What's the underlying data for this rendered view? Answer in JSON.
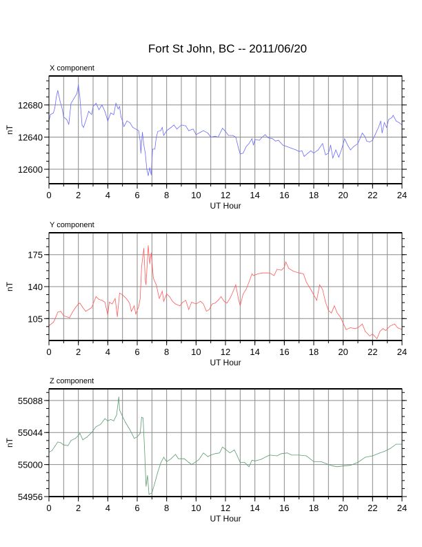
{
  "title": "Fort St John, BC -- 2011/06/20",
  "chart_data": [
    {
      "type": "line",
      "title": "X component",
      "xlabel": "UT Hour",
      "ylabel": "nT",
      "color": "#6a6aff",
      "xlim": [
        0,
        24
      ],
      "xticks": [
        0,
        2,
        4,
        6,
        8,
        10,
        12,
        14,
        16,
        18,
        20,
        22,
        24
      ],
      "ylim": [
        12582,
        12716
      ],
      "yticks": [
        12600,
        12640,
        12680
      ],
      "grid": true,
      "x": [
        0,
        0.1,
        0.3,
        0.4,
        0.5,
        0.6,
        0.75,
        0.9,
        1.0,
        1.2,
        1.35,
        1.5,
        1.7,
        1.9,
        2.0,
        2.1,
        2.25,
        2.35,
        2.5,
        2.7,
        2.9,
        3.0,
        3.2,
        3.4,
        3.6,
        3.8,
        4.0,
        4.2,
        4.4,
        4.55,
        4.7,
        4.8,
        4.9,
        5.0,
        5.1,
        5.3,
        5.5,
        5.7,
        5.9,
        6.1,
        6.2,
        6.25,
        6.35,
        6.45,
        6.55,
        6.65,
        6.75,
        6.85,
        6.95,
        7.0,
        7.05,
        7.2,
        7.3,
        7.4,
        7.6,
        7.7,
        7.8,
        8.0,
        8.3,
        8.5,
        8.7,
        9.0,
        9.3,
        9.5,
        9.8,
        10.0,
        10.3,
        10.5,
        10.8,
        11.0,
        11.3,
        11.5,
        11.8,
        12.0,
        12.2,
        12.5,
        12.7,
        12.9,
        13.0,
        13.2,
        13.4,
        13.6,
        13.8,
        13.9,
        14.0,
        14.3,
        14.5,
        14.7,
        14.9,
        15.2,
        15.4,
        15.6,
        15.9,
        16.2,
        16.5,
        16.8,
        17.0,
        17.2,
        17.35,
        17.6,
        17.8,
        18.0,
        18.3,
        18.6,
        18.8,
        19.0,
        19.15,
        19.3,
        19.5,
        19.7,
        19.9,
        20.1,
        20.3,
        20.5,
        20.7,
        21.0,
        21.3,
        21.5,
        21.6,
        21.8,
        22.0,
        22.2,
        22.4,
        22.55,
        22.65,
        22.8,
        22.95,
        23.1,
        23.3,
        23.4,
        23.6,
        23.8,
        24.0
      ],
      "y": [
        12660,
        12668,
        12670,
        12676,
        12690,
        12698,
        12685,
        12675,
        12665,
        12662,
        12656,
        12682,
        12688,
        12694,
        12705,
        12690,
        12655,
        12652,
        12660,
        12672,
        12668,
        12678,
        12682,
        12674,
        12680,
        12672,
        12660,
        12670,
        12668,
        12682,
        12675,
        12678,
        12665,
        12660,
        12653,
        12660,
        12658,
        12652,
        12650,
        12648,
        12635,
        12620,
        12646,
        12630,
        12620,
        12600,
        12592,
        12602,
        12593,
        12610,
        12625,
        12625,
        12640,
        12647,
        12648,
        12652,
        12642,
        12648,
        12652,
        12655,
        12650,
        12655,
        12654,
        12648,
        12650,
        12643,
        12646,
        12648,
        12645,
        12640,
        12641,
        12640,
        12651,
        12647,
        12642,
        12642,
        12640,
        12625,
        12619,
        12620,
        12628,
        12632,
        12638,
        12630,
        12637,
        12636,
        12640,
        12643,
        12639,
        12638,
        12635,
        12636,
        12630,
        12628,
        12626,
        12624,
        12622,
        12623,
        12616,
        12620,
        12623,
        12620,
        12624,
        12632,
        12618,
        12620,
        12630,
        12614,
        12624,
        12615,
        12625,
        12638,
        12630,
        12624,
        12628,
        12632,
        12645,
        12640,
        12635,
        12634,
        12636,
        12644,
        12652,
        12660,
        12645,
        12658,
        12652,
        12662,
        12664,
        12667,
        12660,
        12658,
        12655
      ]
    },
    {
      "type": "line",
      "title": "Y component",
      "xlabel": "UT Hour",
      "ylabel": "nT",
      "color": "#ff5a5a",
      "xlim": [
        0,
        24
      ],
      "xticks": [
        0,
        2,
        4,
        6,
        8,
        10,
        12,
        14,
        16,
        18,
        20,
        22,
        24
      ],
      "ylim": [
        81,
        199
      ],
      "yticks": [
        105,
        140,
        175
      ],
      "grid": true,
      "x": [
        0,
        0.3,
        0.4,
        0.6,
        0.8,
        1.0,
        1.2,
        1.4,
        1.6,
        1.8,
        2.0,
        2.1,
        2.3,
        2.5,
        2.7,
        2.9,
        3.0,
        3.2,
        3.4,
        3.6,
        3.8,
        4.0,
        4.1,
        4.3,
        4.5,
        4.65,
        4.8,
        5.0,
        5.2,
        5.4,
        5.5,
        5.6,
        5.8,
        5.9,
        6.1,
        6.2,
        6.3,
        6.45,
        6.55,
        6.6,
        6.75,
        6.85,
        6.95,
        7.1,
        7.3,
        7.5,
        7.7,
        7.8,
        8.0,
        8.2,
        8.4,
        8.6,
        8.9,
        9.1,
        9.3,
        9.5,
        9.7,
        10.0,
        10.3,
        10.5,
        10.7,
        10.9,
        11.1,
        11.3,
        11.5,
        11.7,
        11.9,
        12.1,
        12.3,
        12.5,
        12.7,
        12.9,
        13.0,
        13.2,
        13.4,
        13.6,
        13.8,
        13.9,
        14.2,
        14.5,
        14.8,
        15.0,
        15.3,
        15.5,
        15.8,
        16.0,
        16.1,
        16.3,
        16.6,
        17.0,
        17.3,
        17.5,
        17.8,
        18.0,
        18.2,
        18.4,
        18.6,
        18.8,
        19.0,
        19.2,
        19.4,
        19.6,
        19.8,
        20.0,
        20.2,
        20.5,
        20.8,
        21.0,
        21.3,
        21.5,
        21.8,
        22.0,
        22.3,
        22.5,
        22.7,
        22.9,
        23.2,
        23.5,
        23.7,
        24.0
      ],
      "y": [
        97,
        101,
        104,
        112,
        113,
        108,
        107,
        106,
        112,
        117,
        121,
        122,
        117,
        113,
        115,
        117,
        121,
        129,
        126,
        125,
        123,
        109,
        123,
        121,
        127,
        107,
        133,
        131,
        128,
        124,
        121,
        113,
        119,
        110,
        118,
        127,
        162,
        182,
        147,
        142,
        185,
        165,
        177,
        149,
        142,
        127,
        135,
        124,
        132,
        129,
        124,
        121,
        119,
        123,
        125,
        115,
        123,
        121,
        124,
        121,
        113,
        115,
        121,
        122,
        125,
        129,
        124,
        122,
        127,
        134,
        142,
        125,
        119,
        132,
        137,
        145,
        154,
        152,
        154,
        155,
        155,
        155,
        152,
        159,
        158,
        161,
        167,
        160,
        157,
        155,
        154,
        145,
        137,
        131,
        125,
        142,
        137,
        123,
        114,
        111,
        119,
        111,
        107,
        100,
        93,
        95,
        94,
        95,
        99,
        91,
        86,
        88,
        83,
        91,
        94,
        92,
        97,
        99,
        95,
        93
      ]
    },
    {
      "type": "line",
      "title": "Z component",
      "xlabel": "UT Hour",
      "ylabel": "nT",
      "color": "#5a9a70",
      "xlim": [
        0,
        24
      ],
      "xticks": [
        0,
        2,
        4,
        6,
        8,
        10,
        12,
        14,
        16,
        18,
        20,
        22,
        24
      ],
      "ylim": [
        54956,
        55104
      ],
      "yticks": [
        54956,
        55000,
        55044,
        55088
      ],
      "grid": true,
      "x": [
        0,
        0.2,
        0.4,
        0.6,
        0.8,
        1.0,
        1.3,
        1.5,
        1.8,
        2.0,
        2.1,
        2.3,
        2.6,
        2.9,
        3.2,
        3.5,
        3.8,
        4.0,
        4.2,
        4.4,
        4.6,
        4.75,
        4.8,
        5.0,
        5.2,
        5.5,
        5.8,
        6.0,
        6.2,
        6.3,
        6.4,
        6.5,
        6.6,
        6.7,
        6.8,
        7.0,
        7.2,
        7.4,
        7.6,
        7.8,
        8.0,
        8.3,
        8.6,
        8.8,
        9.2,
        9.5,
        9.7,
        10.0,
        10.2,
        10.5,
        10.8,
        11.0,
        11.3,
        11.6,
        11.8,
        12.0,
        12.3,
        12.6,
        12.8,
        13.0,
        13.3,
        13.6,
        13.8,
        14.0,
        14.4,
        14.8,
        15.0,
        15.5,
        15.8,
        16.2,
        16.5,
        17.0,
        17.5,
        18.0,
        18.5,
        19.0,
        19.3,
        19.6,
        20.0,
        20.5,
        21.0,
        21.5,
        22.0,
        22.5,
        22.8,
        23.2,
        23.6,
        24.0
      ],
      "y": [
        55017,
        55019,
        55025,
        55031,
        55030,
        55027,
        55026,
        55033,
        55036,
        55040,
        55043,
        55034,
        55038,
        55044,
        55052,
        55055,
        55063,
        55060,
        55062,
        55060,
        55068,
        55093,
        55075,
        55066,
        55058,
        55048,
        55036,
        55038,
        55043,
        55065,
        55064,
        55020,
        54970,
        54985,
        54959,
        54961,
        54975,
        54990,
        55002,
        55010,
        55004,
        55008,
        55014,
        55008,
        55008,
        55003,
        55000,
        55004,
        55007,
        55016,
        55011,
        55013,
        55015,
        55016,
        55024,
        55021,
        55016,
        55020,
        55012,
        55003,
        55003,
        54997,
        55006,
        55005,
        55007,
        55011,
        55013,
        55012,
        55015,
        55016,
        55013,
        55013,
        55012,
        55004,
        55004,
        55000,
        54998,
        54997,
        54998,
        54999,
        55003,
        55010,
        55012,
        55016,
        55018,
        55022,
        55028,
        55028
      ]
    }
  ]
}
